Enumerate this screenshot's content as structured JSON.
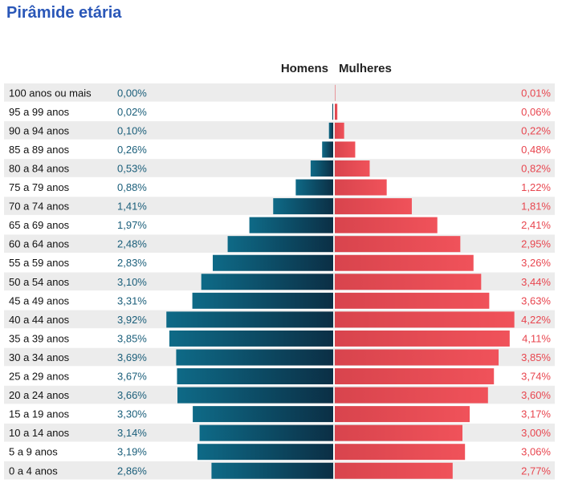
{
  "title": "Pirâmide etária",
  "colors": {
    "men": "#0f5670",
    "women": "#ef4f58",
    "stripe": "#ececec",
    "title": "#2a57b8"
  },
  "chart_data": {
    "type": "bar",
    "orientation": "horizontal-butterfly",
    "categories": [
      "100 anos ou mais",
      "95 a 99 anos",
      "90 a 94 anos",
      "85 a 89 anos",
      "80 a 84 anos",
      "75 a 79 anos",
      "70 a 74 anos",
      "65 a 69 anos",
      "60 a 64 anos",
      "55 a 59 anos",
      "50 a 54 anos",
      "45 a 49 anos",
      "40 a 44 anos",
      "35 a 39 anos",
      "30 a 34 anos",
      "25 a 29 anos",
      "20 a 24 anos",
      "15 a 19 anos",
      "10 a 14 anos",
      "5 a 9 anos",
      "0 a 4 anos"
    ],
    "series": [
      {
        "name": "Homens",
        "values": [
          0.0,
          0.02,
          0.1,
          0.26,
          0.53,
          0.88,
          1.41,
          1.97,
          2.48,
          2.83,
          3.1,
          3.31,
          3.92,
          3.85,
          3.69,
          3.67,
          3.66,
          3.3,
          3.14,
          3.19,
          2.86
        ],
        "labels": [
          "0,00%",
          "0,02%",
          "0,10%",
          "0,26%",
          "0,53%",
          "0,88%",
          "1,41%",
          "1,97%",
          "2,48%",
          "2,83%",
          "3,10%",
          "3,31%",
          "3,92%",
          "3,85%",
          "3,69%",
          "3,67%",
          "3,66%",
          "3,30%",
          "3,14%",
          "3,19%",
          "2,86%"
        ]
      },
      {
        "name": "Mulheres",
        "values": [
          0.01,
          0.06,
          0.22,
          0.48,
          0.82,
          1.22,
          1.81,
          2.41,
          2.95,
          3.26,
          3.44,
          3.63,
          4.22,
          4.11,
          3.85,
          3.74,
          3.6,
          3.17,
          3.0,
          3.06,
          2.77
        ],
        "labels": [
          "0,01%",
          "0,06%",
          "0,22%",
          "0,48%",
          "0,82%",
          "1,22%",
          "1,81%",
          "2,41%",
          "2,95%",
          "3,26%",
          "3,44%",
          "3,63%",
          "4,22%",
          "4,11%",
          "3,85%",
          "3,74%",
          "3,60%",
          "3,17%",
          "3,00%",
          "3,06%",
          "2,77%"
        ]
      }
    ],
    "grid": false,
    "legend": "top-center"
  }
}
